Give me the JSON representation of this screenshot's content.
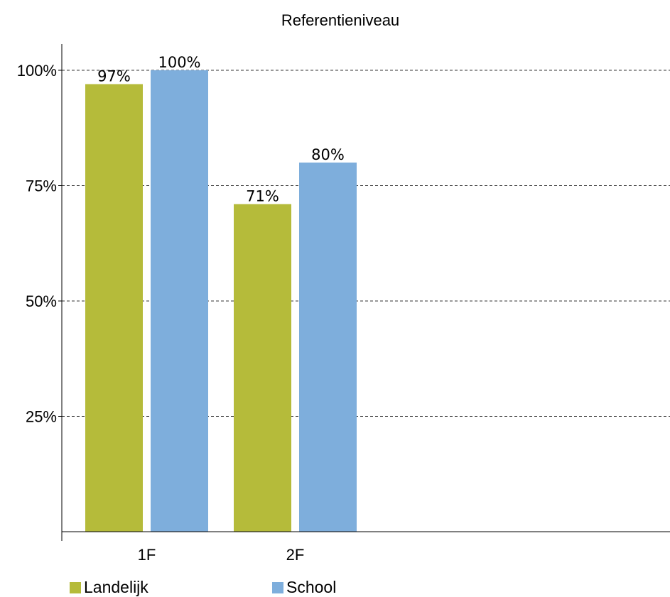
{
  "chart_data": {
    "type": "bar",
    "title": "Referentieniveau",
    "categories": [
      "1F",
      "2F"
    ],
    "series": [
      {
        "name": "Landelijk",
        "values": [
          97,
          71
        ],
        "labels": [
          "97%",
          "71%"
        ],
        "color": "#b5bb3a"
      },
      {
        "name": "School",
        "values": [
          100,
          80
        ],
        "labels": [
          "100%",
          "80%"
        ],
        "color": "#7eaedc"
      }
    ],
    "yticks": [
      {
        "value": 25,
        "label": "25%"
      },
      {
        "value": 50,
        "label": "50%"
      },
      {
        "value": 75,
        "label": "75%"
      },
      {
        "value": 100,
        "label": "100%"
      }
    ],
    "ylim": [
      0,
      100
    ],
    "grid": "dashed horizontal",
    "legend_position": "bottom-left"
  }
}
